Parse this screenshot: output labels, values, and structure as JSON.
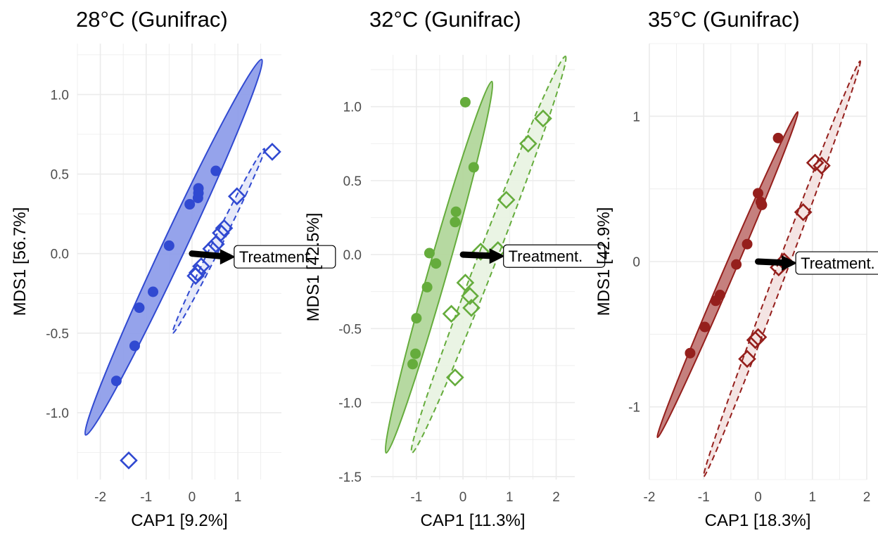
{
  "chart_data": [
    {
      "type": "scatter",
      "title": "28°C (Gunifrac)",
      "xlabel": "CAP1 [9.2%]",
      "ylabel": "MDS1 [56.7%]",
      "xlim": [
        -2.5,
        1.95
      ],
      "ylim": [
        -1.42,
        1.32
      ],
      "xticks": [
        -2,
        -1,
        0,
        1
      ],
      "xtick_labels": [
        "-2",
        "-1",
        "0",
        "1"
      ],
      "yticks": [
        -1.0,
        -0.5,
        0.0,
        0.5,
        1.0
      ],
      "ytick_labels": [
        "-1.0",
        "-0.5",
        "0.0",
        "0.5",
        "1.0"
      ],
      "colors": {
        "main": "#3049d1",
        "fill_solid": "#8f9eea",
        "fill_light": "#e3e7f8"
      },
      "arrow": {
        "from": [
          0.0,
          0.0
        ],
        "to": [
          0.95,
          -0.02
        ],
        "label": "Treatment."
      },
      "series": [
        {
          "marker": "circle",
          "points": [
            [
              0.52,
              0.52
            ],
            [
              0.14,
              0.41
            ],
            [
              0.14,
              0.38
            ],
            [
              0.13,
              0.35
            ],
            [
              -0.05,
              0.31
            ],
            [
              -0.5,
              0.05
            ],
            [
              -0.85,
              -0.24
            ],
            [
              -1.15,
              -0.34
            ],
            [
              -1.25,
              -0.58
            ],
            [
              -1.65,
              -0.8
            ]
          ],
          "ellipse": {
            "center": [
              -0.4,
              0.05
            ],
            "end1": [
              1.52,
              1.22
            ],
            "end2": [
              -2.32,
              -1.14
            ],
            "minor": 0.25,
            "style": "solid"
          }
        },
        {
          "marker": "diamond",
          "points": [
            [
              1.75,
              0.64
            ],
            [
              0.98,
              0.36
            ],
            [
              0.7,
              0.16
            ],
            [
              0.63,
              0.13
            ],
            [
              0.52,
              0.06
            ],
            [
              0.42,
              0.03
            ],
            [
              0.2,
              -0.08
            ],
            [
              0.12,
              -0.12
            ],
            [
              0.08,
              -0.14
            ],
            [
              -1.38,
              -1.3
            ]
          ],
          "ellipse": {
            "center": [
              0.64,
              0.08
            ],
            "end1": [
              1.58,
              0.66
            ],
            "end2": [
              -0.42,
              -0.5
            ],
            "minor": 0.1,
            "style": "dashed"
          }
        }
      ]
    },
    {
      "type": "scatter",
      "title": "32°C (Gunifrac)",
      "xlabel": "CAP1 [11.3%]",
      "ylabel": "MDS1 [42.5%]",
      "xlim": [
        -1.98,
        2.4
      ],
      "ylim": [
        -1.52,
        1.35
      ],
      "xticks": [
        -1,
        0,
        1,
        2
      ],
      "xtick_labels": [
        "-1",
        "0",
        "1",
        "2"
      ],
      "yticks": [
        -1.5,
        -1.0,
        -0.5,
        0.0,
        0.5,
        1.0
      ],
      "ytick_labels": [
        "-1.5",
        "-1.0",
        "-0.5",
        "0.0",
        "0.5",
        "1.0"
      ],
      "colors": {
        "main": "#65ac3c",
        "fill_solid": "#b2d79c",
        "fill_light": "#e8f3e1"
      },
      "arrow": {
        "from": [
          0.0,
          0.0
        ],
        "to": [
          0.9,
          -0.01
        ],
        "label": "Treatment."
      },
      "series": [
        {
          "marker": "circle",
          "points": [
            [
              0.05,
              1.03
            ],
            [
              0.23,
              0.59
            ],
            [
              -0.15,
              0.29
            ],
            [
              -0.17,
              0.22
            ],
            [
              -0.72,
              0.01
            ],
            [
              -0.58,
              -0.06
            ],
            [
              -0.77,
              -0.22
            ],
            [
              -1.0,
              -0.43
            ],
            [
              -1.02,
              -0.67
            ],
            [
              -1.08,
              -0.74
            ]
          ],
          "ellipse": {
            "center": [
              -0.5,
              -0.16
            ],
            "end1": [
              0.62,
              1.17
            ],
            "end2": [
              -1.65,
              -1.34
            ],
            "minor": 0.2,
            "style": "solid"
          }
        },
        {
          "marker": "diamond",
          "points": [
            [
              1.72,
              0.92
            ],
            [
              1.4,
              0.75
            ],
            [
              0.93,
              0.37
            ],
            [
              0.75,
              0.03
            ],
            [
              0.38,
              0.02
            ],
            [
              0.05,
              -0.19
            ],
            [
              0.15,
              -0.28
            ],
            [
              0.18,
              -0.36
            ],
            [
              -0.25,
              -0.4
            ],
            [
              -0.17,
              -0.83
            ]
          ],
          "ellipse": {
            "center": [
              0.55,
              -0.03
            ],
            "end1": [
              2.2,
              1.34
            ],
            "end2": [
              -1.1,
              -1.34
            ],
            "minor": 0.2,
            "style": "dashed"
          }
        }
      ]
    },
    {
      "type": "scatter",
      "title": "35°C (Gunifrac)",
      "xlabel": "CAP1 [18.3%]",
      "ylabel": "MDS1 [42.9%]",
      "xlim": [
        -2.0,
        2.0
      ],
      "ylim": [
        -1.5,
        1.5
      ],
      "xticks": [
        -2,
        -1,
        0,
        1,
        2
      ],
      "xtick_labels": [
        "-2",
        "-1",
        "0",
        "1",
        "2"
      ],
      "yticks": [
        -1,
        0,
        1
      ],
      "ytick_labels": [
        "-1",
        "0",
        "1"
      ],
      "colors": {
        "main": "#951f1c",
        "fill_solid": "#c27977",
        "fill_light": "#f3e1e0"
      },
      "arrow": {
        "from": [
          0.0,
          0.0
        ],
        "to": [
          0.72,
          -0.01
        ],
        "label": "Treatment."
      },
      "series": [
        {
          "marker": "circle",
          "points": [
            [
              0.37,
              0.85
            ],
            [
              0.0,
              0.47
            ],
            [
              0.05,
              0.41
            ],
            [
              0.07,
              0.39
            ],
            [
              -0.2,
              0.12
            ],
            [
              -0.4,
              -0.02
            ],
            [
              -0.7,
              -0.23
            ],
            [
              -0.78,
              -0.27
            ],
            [
              -0.98,
              -0.45
            ],
            [
              -1.25,
              -0.63
            ]
          ],
          "ellipse": {
            "center": [
              -0.35,
              -0.07
            ],
            "end1": [
              0.73,
              1.03
            ],
            "end2": [
              -1.85,
              -1.21
            ],
            "minor": 0.1,
            "style": "solid"
          }
        },
        {
          "marker": "diamond",
          "points": [
            [
              1.17,
              0.66
            ],
            [
              1.05,
              0.68
            ],
            [
              0.83,
              0.34
            ],
            [
              0.48,
              0.0
            ],
            [
              0.38,
              -0.04
            ],
            [
              0.0,
              -0.52
            ],
            [
              -0.05,
              -0.54
            ],
            [
              -0.2,
              -0.67
            ]
          ],
          "ellipse": {
            "center": [
              0.43,
              -0.06
            ],
            "end1": [
              1.88,
              1.38
            ],
            "end2": [
              -1.0,
              -1.48
            ],
            "minor": 0.1,
            "style": "dashed"
          }
        }
      ]
    }
  ]
}
